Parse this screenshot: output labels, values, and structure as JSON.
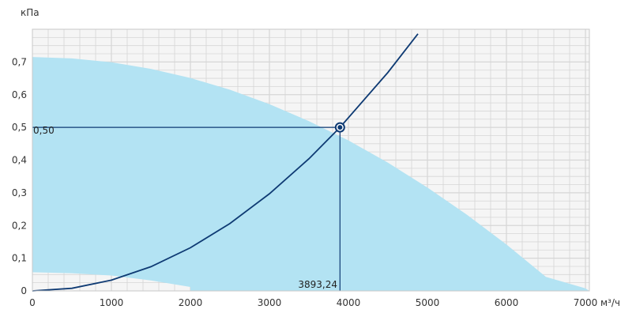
{
  "chart_data": {
    "type": "line",
    "title": "",
    "xlabel": "м³/ч",
    "ylabel": "кПа",
    "xlim": [
      0,
      7050
    ],
    "ylim": [
      0,
      0.8
    ],
    "xticks": [
      0,
      1000,
      2000,
      3000,
      4000,
      5000,
      6000,
      7000
    ],
    "xtick_labels": [
      "0",
      "1000",
      "2000",
      "3000",
      "4000",
      "5000",
      "6000",
      "7000"
    ],
    "yticks": [
      0,
      0.1,
      0.2,
      0.3,
      0.4,
      0.5,
      0.6,
      0.7
    ],
    "ytick_labels": [
      "0",
      "0,1",
      "0,2",
      "0,3",
      "0,4",
      "0,5",
      "0,6",
      "0,7"
    ],
    "grid": true,
    "legend": "none",
    "operating_region": {
      "upper_boundary": {
        "x": [
          0,
          500,
          1000,
          1500,
          2000,
          2500,
          3000,
          3500,
          4000,
          4500,
          5000,
          5500,
          6000,
          6500,
          7000,
          7050
        ],
        "y": [
          0.715,
          0.711,
          0.699,
          0.679,
          0.651,
          0.615,
          0.571,
          0.519,
          0.46,
          0.392,
          0.316,
          0.233,
          0.142,
          0.043,
          0.008,
          0
        ]
      },
      "lower_boundary": {
        "x": [
          0,
          500,
          1000,
          1500,
          2000
        ],
        "y": [
          0.057,
          0.054,
          0.047,
          0.032,
          0.012
        ]
      }
    },
    "series": [
      {
        "name": "",
        "x": [
          0,
          500,
          1000,
          1500,
          2000,
          2500,
          3000,
          3500,
          3893.24,
          4500,
          4880
        ],
        "y": [
          0,
          0.008,
          0.033,
          0.074,
          0.132,
          0.206,
          0.297,
          0.404,
          0.5,
          0.668,
          0.786
        ]
      }
    ],
    "operating_point": {
      "x": 3893.24,
      "y": 0.5,
      "x_label": "3893,24",
      "y_label": "0,50"
    }
  },
  "colors": {
    "region_fill": "#b3e3f3",
    "curve": "#0e3a73",
    "grid": "#d6d6d6",
    "plot_background": "#f5f5f5"
  }
}
